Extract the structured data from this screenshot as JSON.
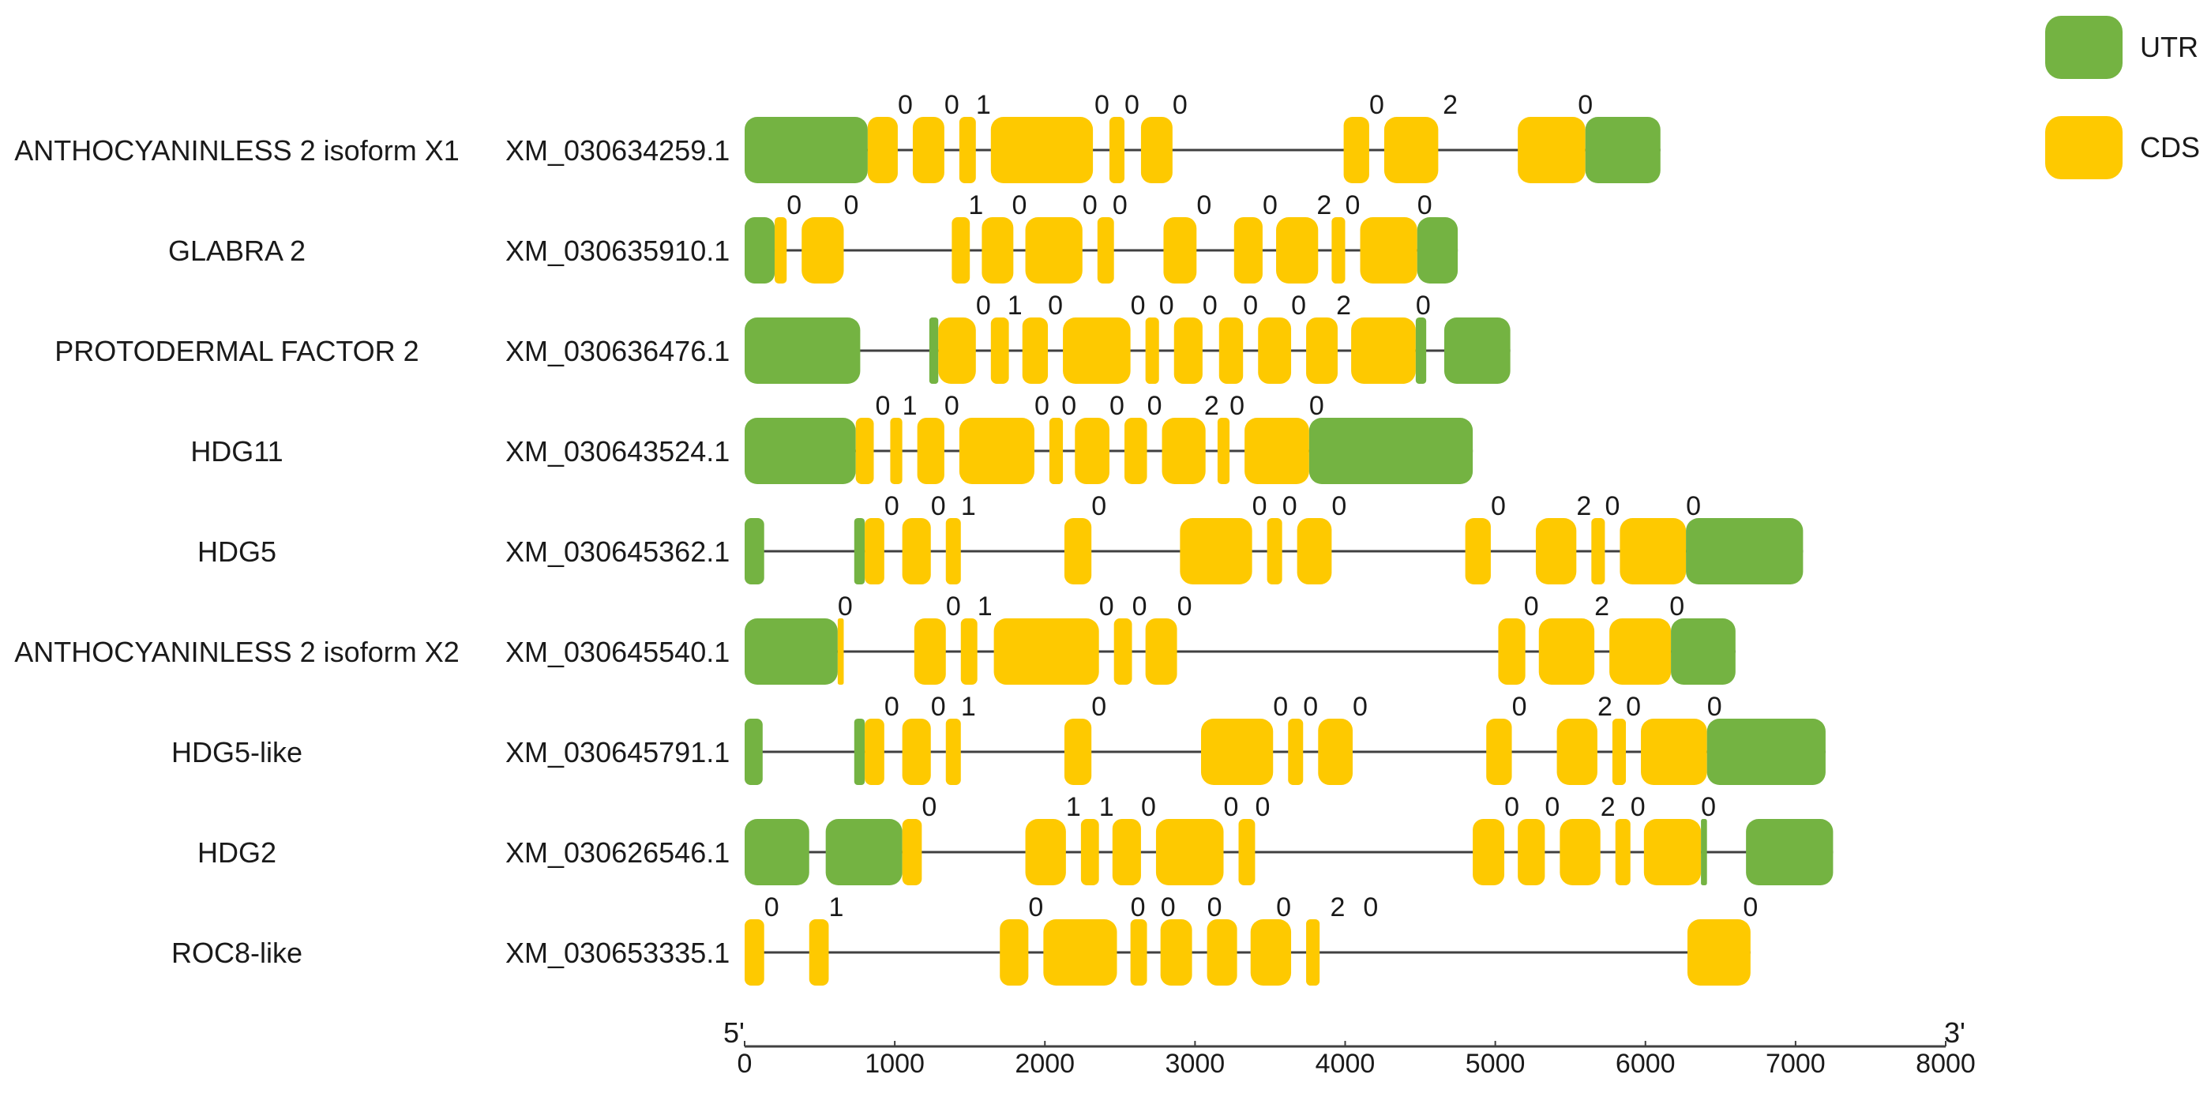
{
  "legend": {
    "items": [
      {
        "label": "UTR",
        "color": "#74b342"
      },
      {
        "label": "CDS",
        "color": "#fec900"
      }
    ]
  },
  "axis": {
    "five_prime": "5'",
    "three_prime": "3'",
    "min": 0,
    "max": 8000,
    "ticks": [
      0,
      1000,
      2000,
      3000,
      4000,
      5000,
      6000,
      7000,
      8000
    ]
  },
  "colors": {
    "utr": "#74b342",
    "cds": "#fec900",
    "intron": "#404040",
    "text": "#1a1a1a"
  },
  "genes": [
    {
      "name": "ANTHOCYANINLESS 2 isoform X1",
      "accession": "XM_030634259.1",
      "length": 6100,
      "segments": [
        [
          "utr",
          0,
          820
        ],
        [
          "cds",
          820,
          1020
        ],
        [
          "cds",
          1120,
          1330
        ],
        [
          "cds",
          1430,
          1540
        ],
        [
          "cds",
          1640,
          2320
        ],
        [
          "cds",
          2430,
          2530
        ],
        [
          "cds",
          2640,
          2850
        ],
        [
          "cds",
          3990,
          4160
        ],
        [
          "cds",
          4260,
          4620
        ],
        [
          "cds",
          5150,
          5600
        ],
        [
          "utr",
          5600,
          6100
        ]
      ],
      "phases": [
        [
          "0",
          1070
        ],
        [
          "0",
          1380
        ],
        [
          "1",
          1590
        ],
        [
          "0",
          2380
        ],
        [
          "0",
          2580
        ],
        [
          "0",
          2900
        ],
        [
          "0",
          4210
        ],
        [
          "2",
          4700
        ],
        [
          "0",
          5600
        ]
      ]
    },
    {
      "name": "GLABRA 2",
      "accession": "XM_030635910.1",
      "length": 4750,
      "segments": [
        [
          "utr",
          0,
          200
        ],
        [
          "cds",
          200,
          280
        ],
        [
          "cds",
          380,
          660
        ],
        [
          "cds",
          1380,
          1500
        ],
        [
          "cds",
          1580,
          1790
        ],
        [
          "cds",
          1870,
          2250
        ],
        [
          "cds",
          2350,
          2460
        ],
        [
          "cds",
          2790,
          3010
        ],
        [
          "cds",
          3260,
          3450
        ],
        [
          "cds",
          3540,
          3820
        ],
        [
          "cds",
          3910,
          4000
        ],
        [
          "cds",
          4100,
          4480
        ],
        [
          "utr",
          4480,
          4750
        ]
      ],
      "phases": [
        [
          "0",
          330
        ],
        [
          "0",
          710
        ],
        [
          "1",
          1540
        ],
        [
          "0",
          1830
        ],
        [
          "0",
          2300
        ],
        [
          "0",
          2500
        ],
        [
          "0",
          3060
        ],
        [
          "0",
          3500
        ],
        [
          "2",
          3860
        ],
        [
          "0",
          4050
        ],
        [
          "0",
          4530
        ]
      ]
    },
    {
      "name": "PROTODERMAL FACTOR 2",
      "accession": "XM_030636476.1",
      "length": 5100,
      "segments": [
        [
          "utr",
          0,
          770
        ],
        [
          "utr",
          1230,
          1290
        ],
        [
          "cds",
          1290,
          1540
        ],
        [
          "cds",
          1640,
          1760
        ],
        [
          "cds",
          1850,
          2020
        ],
        [
          "cds",
          2120,
          2570
        ],
        [
          "cds",
          2670,
          2760
        ],
        [
          "cds",
          2860,
          3050
        ],
        [
          "cds",
          3160,
          3320
        ],
        [
          "cds",
          3420,
          3640
        ],
        [
          "cds",
          3740,
          3950
        ],
        [
          "cds",
          4040,
          4470
        ],
        [
          "utr",
          4470,
          4540
        ],
        [
          "utr",
          4660,
          5100
        ]
      ],
      "phases": [
        [
          "0",
          1590
        ],
        [
          "1",
          1800
        ],
        [
          "0",
          2070
        ],
        [
          "0",
          2620
        ],
        [
          "0",
          2810
        ],
        [
          "0",
          3100
        ],
        [
          "0",
          3370
        ],
        [
          "0",
          3690
        ],
        [
          "2",
          3990
        ],
        [
          "0",
          4520
        ]
      ]
    },
    {
      "name": "HDG11",
      "accession": "XM_030643524.1",
      "length": 4850,
      "segments": [
        [
          "utr",
          0,
          740
        ],
        [
          "cds",
          740,
          860
        ],
        [
          "cds",
          970,
          1050
        ],
        [
          "cds",
          1150,
          1330
        ],
        [
          "cds",
          1430,
          1930
        ],
        [
          "cds",
          2030,
          2120
        ],
        [
          "cds",
          2200,
          2430
        ],
        [
          "cds",
          2530,
          2680
        ],
        [
          "cds",
          2780,
          3070
        ],
        [
          "cds",
          3150,
          3230
        ],
        [
          "cds",
          3330,
          3760
        ],
        [
          "utr",
          3760,
          4850
        ]
      ],
      "phases": [
        [
          "0",
          920
        ],
        [
          "1",
          1100
        ],
        [
          "0",
          1380
        ],
        [
          "0",
          1980
        ],
        [
          "0",
          2160
        ],
        [
          "0",
          2480
        ],
        [
          "0",
          2730
        ],
        [
          "2",
          3110
        ],
        [
          "0",
          3280
        ],
        [
          "0",
          3810
        ]
      ]
    },
    {
      "name": "HDG5",
      "accession": "XM_030645362.1",
      "length": 7050,
      "segments": [
        [
          "utr",
          0,
          130
        ],
        [
          "utr",
          730,
          800
        ],
        [
          "cds",
          800,
          930
        ],
        [
          "cds",
          1050,
          1240
        ],
        [
          "cds",
          1340,
          1440
        ],
        [
          "cds",
          2130,
          2310
        ],
        [
          "cds",
          2900,
          3380
        ],
        [
          "cds",
          3480,
          3580
        ],
        [
          "cds",
          3680,
          3910
        ],
        [
          "cds",
          4800,
          4970
        ],
        [
          "cds",
          5270,
          5540
        ],
        [
          "cds",
          5640,
          5730
        ],
        [
          "cds",
          5830,
          6270
        ],
        [
          "utr",
          6270,
          7050
        ]
      ],
      "phases": [
        [
          "0",
          980
        ],
        [
          "0",
          1290
        ],
        [
          "1",
          1490
        ],
        [
          "0",
          2360
        ],
        [
          "0",
          3430
        ],
        [
          "0",
          3630
        ],
        [
          "0",
          3960
        ],
        [
          "0",
          5020
        ],
        [
          "2",
          5590
        ],
        [
          "0",
          5780
        ],
        [
          "0",
          6320
        ]
      ]
    },
    {
      "name": "ANTHOCYANINLESS 2 isoform X2",
      "accession": "XM_030645540.1",
      "length": 6600,
      "segments": [
        [
          "utr",
          0,
          620
        ],
        [
          "cds",
          620,
          660
        ],
        [
          "cds",
          1130,
          1340
        ],
        [
          "cds",
          1440,
          1550
        ],
        [
          "cds",
          1660,
          2360
        ],
        [
          "cds",
          2460,
          2580
        ],
        [
          "cds",
          2670,
          2880
        ],
        [
          "cds",
          5020,
          5200
        ],
        [
          "cds",
          5290,
          5660
        ],
        [
          "cds",
          5760,
          6170
        ],
        [
          "utr",
          6170,
          6600
        ]
      ],
      "phases": [
        [
          "0",
          670
        ],
        [
          "0",
          1390
        ],
        [
          "1",
          1600
        ],
        [
          "0",
          2410
        ],
        [
          "0",
          2630
        ],
        [
          "0",
          2930
        ],
        [
          "0",
          5240
        ],
        [
          "2",
          5710
        ],
        [
          "0",
          6210
        ]
      ]
    },
    {
      "name": "HDG5-like",
      "accession": "XM_030645791.1",
      "length": 7200,
      "segments": [
        [
          "utr",
          0,
          120
        ],
        [
          "utr",
          730,
          800
        ],
        [
          "cds",
          800,
          930
        ],
        [
          "cds",
          1050,
          1240
        ],
        [
          "cds",
          1340,
          1440
        ],
        [
          "cds",
          2130,
          2310
        ],
        [
          "cds",
          3040,
          3520
        ],
        [
          "cds",
          3620,
          3720
        ],
        [
          "cds",
          3820,
          4050
        ],
        [
          "cds",
          4940,
          5110
        ],
        [
          "cds",
          5410,
          5680
        ],
        [
          "cds",
          5780,
          5870
        ],
        [
          "cds",
          5970,
          6410
        ],
        [
          "utr",
          6410,
          7200
        ]
      ],
      "phases": [
        [
          "0",
          980
        ],
        [
          "0",
          1290
        ],
        [
          "1",
          1490
        ],
        [
          "0",
          2360
        ],
        [
          "0",
          3570
        ],
        [
          "0",
          3770
        ],
        [
          "0",
          4100
        ],
        [
          "0",
          5160
        ],
        [
          "2",
          5730
        ],
        [
          "0",
          5920
        ],
        [
          "0",
          6460
        ]
      ]
    },
    {
      "name": "HDG2",
      "accession": "XM_030626546.1",
      "length": 7250,
      "segments": [
        [
          "utr",
          0,
          430
        ],
        [
          "utr",
          540,
          1050
        ],
        [
          "cds",
          1050,
          1180
        ],
        [
          "cds",
          1870,
          2140
        ],
        [
          "cds",
          2240,
          2360
        ],
        [
          "cds",
          2450,
          2640
        ],
        [
          "cds",
          2740,
          3190
        ],
        [
          "cds",
          3290,
          3400
        ],
        [
          "cds",
          4850,
          5060
        ],
        [
          "cds",
          5150,
          5330
        ],
        [
          "cds",
          5430,
          5700
        ],
        [
          "cds",
          5800,
          5900
        ],
        [
          "cds",
          5990,
          6370
        ],
        [
          "utr",
          6370,
          6410
        ],
        [
          "utr",
          6670,
          7250
        ]
      ],
      "phases": [
        [
          "0",
          1230
        ],
        [
          "1",
          2190
        ],
        [
          "1",
          2410
        ],
        [
          "0",
          2690
        ],
        [
          "0",
          3240
        ],
        [
          "0",
          3450
        ],
        [
          "0",
          5110
        ],
        [
          "0",
          5380
        ],
        [
          "2",
          5750
        ],
        [
          "0",
          5950
        ],
        [
          "0",
          6420
        ]
      ]
    },
    {
      "name": "ROC8-like",
      "accession": "XM_030653335.1",
      "length": 6700,
      "segments": [
        [
          "cds",
          0,
          130
        ],
        [
          "cds",
          430,
          560
        ],
        [
          "cds",
          1700,
          1890
        ],
        [
          "cds",
          1990,
          2480
        ],
        [
          "cds",
          2570,
          2680
        ],
        [
          "cds",
          2770,
          2980
        ],
        [
          "cds",
          3080,
          3280
        ],
        [
          "cds",
          3370,
          3640
        ],
        [
          "cds",
          3740,
          3830
        ],
        [
          "cds",
          6280,
          6700
        ]
      ],
      "phases": [
        [
          "0",
          180
        ],
        [
          "1",
          610
        ],
        [
          "0",
          1940
        ],
        [
          "0",
          2620
        ],
        [
          "0",
          2820
        ],
        [
          "0",
          3130
        ],
        [
          "0",
          3590
        ],
        [
          "2",
          3950
        ],
        [
          "0",
          4170
        ],
        [
          "0",
          6700
        ]
      ]
    }
  ]
}
